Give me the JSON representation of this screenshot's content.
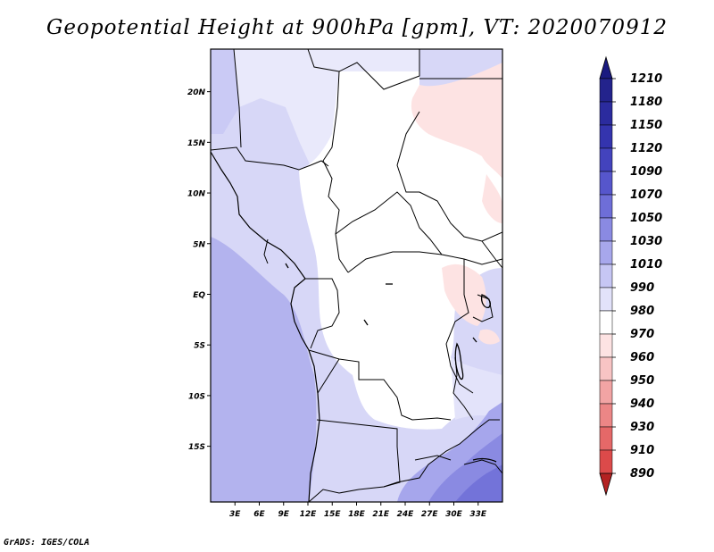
{
  "title": "Geopotential Height at 900hPa [gpm], VT: 2020070912",
  "credit": "GrADS: IGES/COLA",
  "map": {
    "variable": "Geopotential Height",
    "level": "900hPa",
    "units": "gpm",
    "valid_time": "2020070912",
    "lat_ticks": [
      {
        "label": "20N",
        "lat": 20
      },
      {
        "label": "15N",
        "lat": 15
      },
      {
        "label": "10N",
        "lat": 10
      },
      {
        "label": "5N",
        "lat": 5
      },
      {
        "label": "EQ",
        "lat": 0
      },
      {
        "label": "5S",
        "lat": -5
      },
      {
        "label": "10S",
        "lat": -10
      },
      {
        "label": "15S",
        "lat": -15
      }
    ],
    "lon_ticks": [
      {
        "label": "3E",
        "lon": 3
      },
      {
        "label": "6E",
        "lon": 6
      },
      {
        "label": "9E",
        "lon": 9
      },
      {
        "label": "12E",
        "lon": 12
      },
      {
        "label": "15E",
        "lon": 15
      },
      {
        "label": "18E",
        "lon": 18
      },
      {
        "label": "21E",
        "lon": 21
      },
      {
        "label": "24E",
        "lon": 24
      },
      {
        "label": "27E",
        "lon": 27
      },
      {
        "label": "30E",
        "lon": 30
      },
      {
        "label": "33E",
        "lon": 33
      }
    ]
  },
  "colorbar": {
    "levels": [
      {
        "label": "1210",
        "color": "#23238c"
      },
      {
        "label": "1180",
        "color": "#2b2b9e"
      },
      {
        "label": "1150",
        "color": "#3434ae"
      },
      {
        "label": "1120",
        "color": "#4343bd"
      },
      {
        "label": "1090",
        "color": "#5656cc"
      },
      {
        "label": "1070",
        "color": "#6e6ed8"
      },
      {
        "label": "1050",
        "color": "#8a8ae2"
      },
      {
        "label": "1030",
        "color": "#a7a7ec"
      },
      {
        "label": "1010",
        "color": "#c6c6f4"
      },
      {
        "label": "990",
        "color": "#e2e2fa"
      },
      {
        "label": "980",
        "color": "#ffffff"
      },
      {
        "label": "970",
        "color": "#fde3e3"
      },
      {
        "label": "960",
        "color": "#f8c4c4"
      },
      {
        "label": "950",
        "color": "#f2a4a4"
      },
      {
        "label": "940",
        "color": "#ec8686"
      },
      {
        "label": "930",
        "color": "#e56868"
      },
      {
        "label": "910",
        "color": "#dc4a4a"
      },
      {
        "label": "890",
        "color": "#cc3232"
      }
    ],
    "arrow_top_color": "#1a1a80",
    "arrow_bottom_color": "#b32222"
  }
}
